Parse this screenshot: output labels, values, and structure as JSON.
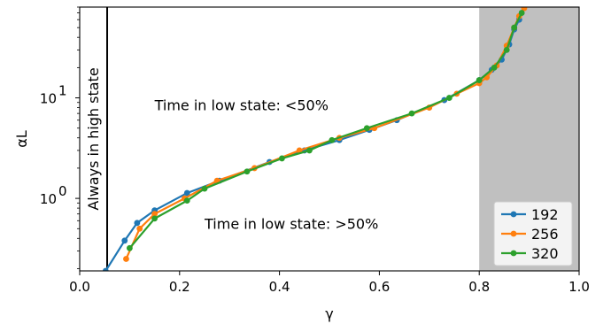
{
  "chart_data": {
    "type": "line",
    "xlabel": "γ",
    "ylabel": "αL",
    "xlim": [
      0.0,
      1.0
    ],
    "ylim": [
      0.19,
      80
    ],
    "yscale": "log",
    "x_ticks": [
      {
        "value": 0.0,
        "label": "0.0"
      },
      {
        "value": 0.2,
        "label": "0.2"
      },
      {
        "value": 0.4,
        "label": "0.4"
      },
      {
        "value": 0.6,
        "label": "0.6"
      },
      {
        "value": 0.8,
        "label": "0.8"
      },
      {
        "value": 1.0,
        "label": "1.0"
      }
    ],
    "y_ticks": [
      {
        "value": 1,
        "base": "10",
        "exp": "0"
      },
      {
        "value": 10,
        "base": "10",
        "exp": "1"
      }
    ],
    "shaded_region": {
      "x": [
        0.8,
        1.0
      ],
      "color": "#c0c0c0"
    },
    "vertical_line": {
      "x": 0.055,
      "color": "#000000",
      "label": "Always in high state"
    },
    "annotations": [
      {
        "text": "Time in low state: <50%",
        "x": 0.15,
        "y": 7.5
      },
      {
        "text": "Time in low state: >50%",
        "x": 0.25,
        "y": 0.5
      }
    ],
    "legend_position": "lower right",
    "series": [
      {
        "name": "192",
        "color": "#1f77b4",
        "x": [
          0.052,
          0.09,
          0.115,
          0.15,
          0.215,
          0.28,
          0.38,
          0.45,
          0.52,
          0.58,
          0.635,
          0.73,
          0.8,
          0.825,
          0.845,
          0.86,
          0.87,
          0.88
        ],
        "y": [
          0.19,
          0.38,
          0.57,
          0.76,
          1.13,
          1.5,
          2.3,
          3.0,
          3.8,
          4.8,
          6.0,
          9.5,
          15.0,
          19.0,
          24.0,
          34.0,
          48.0,
          60.0
        ]
      },
      {
        "name": "256",
        "color": "#ff7f0e",
        "x": [
          0.093,
          0.12,
          0.15,
          0.21,
          0.275,
          0.35,
          0.44,
          0.52,
          0.59,
          0.7,
          0.755,
          0.8,
          0.815,
          0.835,
          0.855,
          0.87,
          0.88,
          0.89
        ],
        "y": [
          0.25,
          0.5,
          0.7,
          1.0,
          1.5,
          2.0,
          3.0,
          4.0,
          5.0,
          8.0,
          11.0,
          14.0,
          16.0,
          21.0,
          33.0,
          50.0,
          65.0,
          78.0
        ]
      },
      {
        "name": "320",
        "color": "#2ca02c",
        "x": [
          0.1,
          0.15,
          0.215,
          0.25,
          0.335,
          0.405,
          0.46,
          0.505,
          0.575,
          0.665,
          0.74,
          0.8,
          0.83,
          0.855,
          0.87,
          0.885
        ],
        "y": [
          0.32,
          0.63,
          0.95,
          1.25,
          1.85,
          2.5,
          3.0,
          3.8,
          5.0,
          7.0,
          10.0,
          15.0,
          20.0,
          30.0,
          50.0,
          70.0
        ]
      }
    ]
  }
}
